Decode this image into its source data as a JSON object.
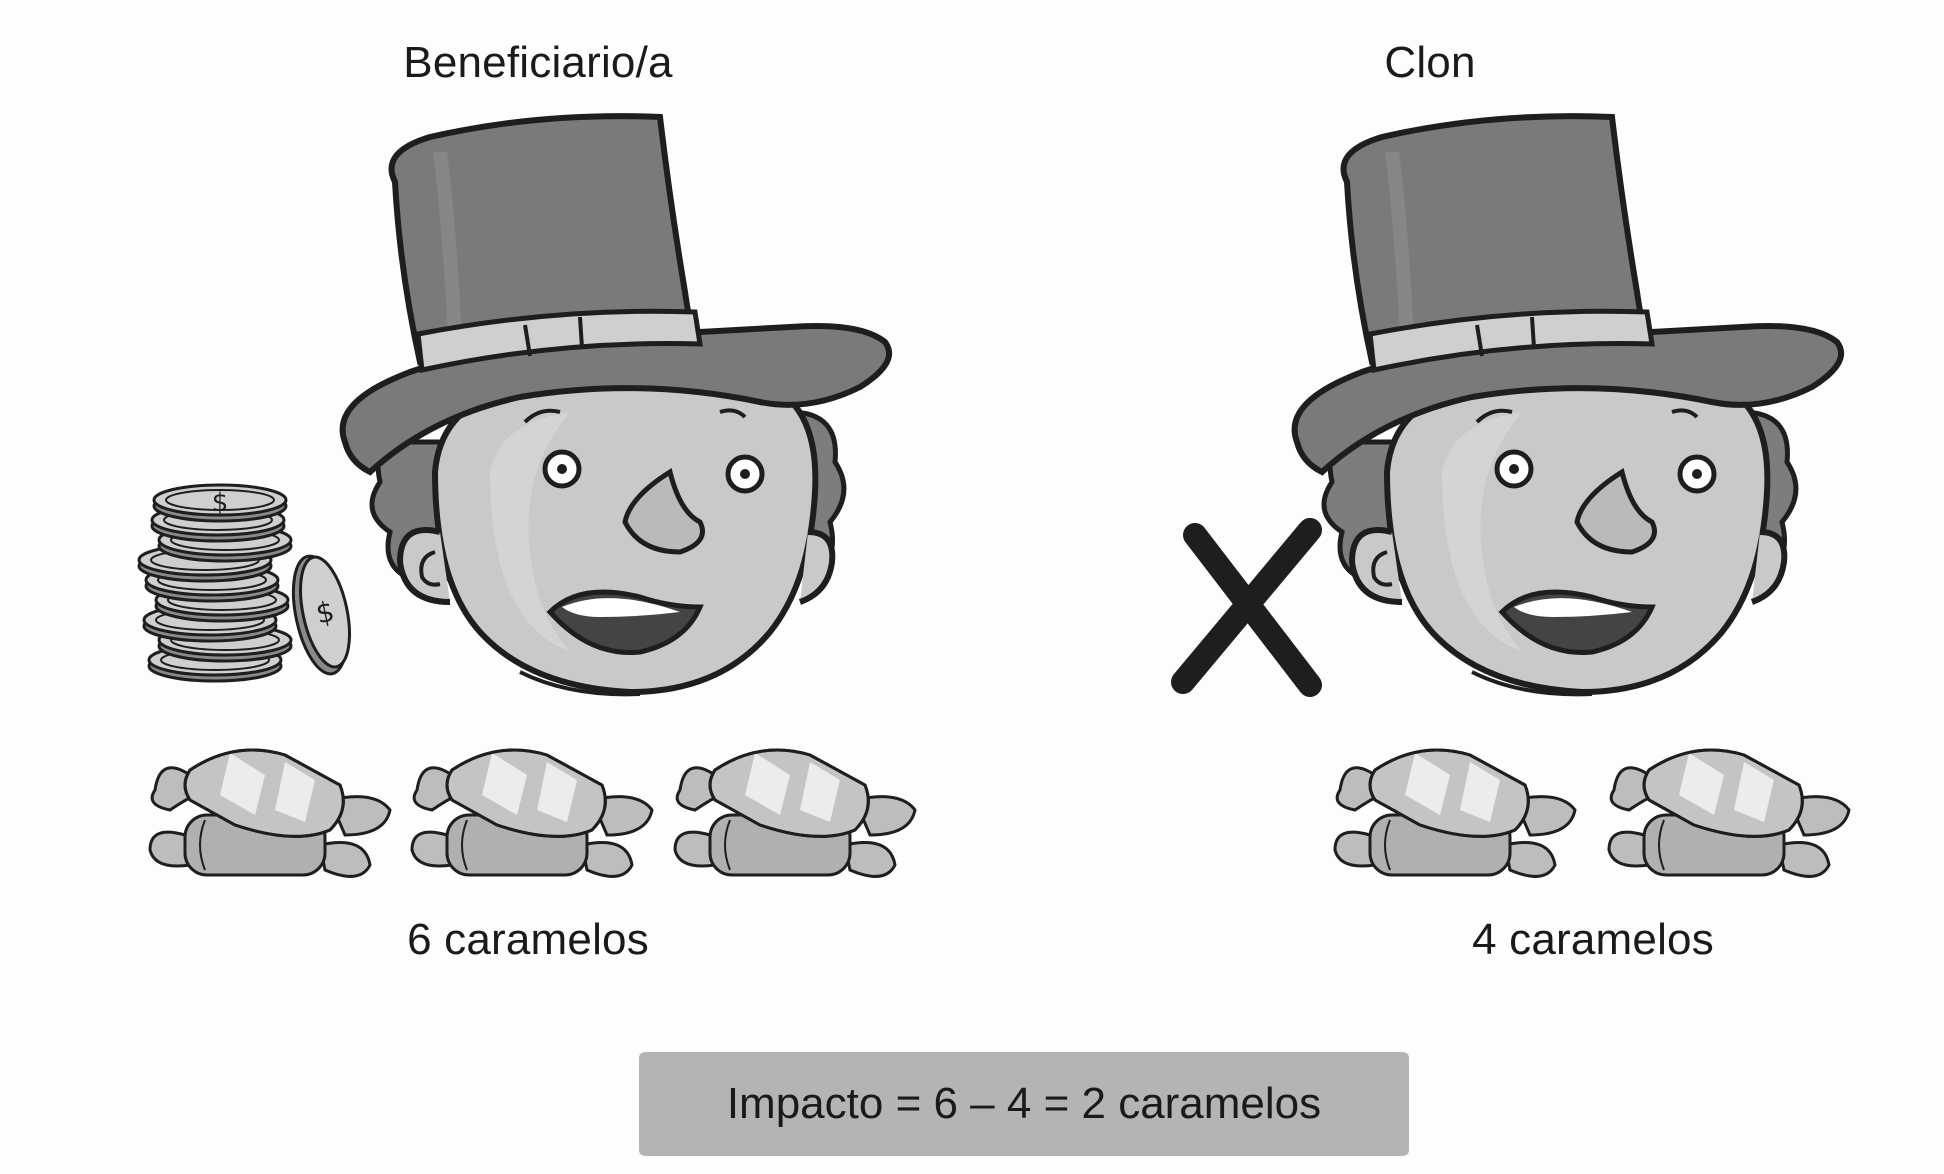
{
  "labels": {
    "beneficiary_title": "Beneficiario/a",
    "clone_title": "Clon",
    "beneficiary_candies": "6 caramelos",
    "clone_candies": "4 caramelos",
    "impact": "Impacto = 6 – 4 = 2 caramelos"
  },
  "counts": {
    "beneficiary_candies": 6,
    "clone_candies": 4
  },
  "icons": {
    "coin_symbol": "$",
    "cross_symbol": "X"
  },
  "colors": {
    "hat": "#7a7a7a",
    "hat_band": "#cfcfcf",
    "face": "#c9c9c9",
    "hair": "#7d7d7d",
    "candy": "#bdbdbd",
    "candy_stripe": "#ececec",
    "outline": "#1e1e1e",
    "impact_box": "#b4b4b4"
  }
}
